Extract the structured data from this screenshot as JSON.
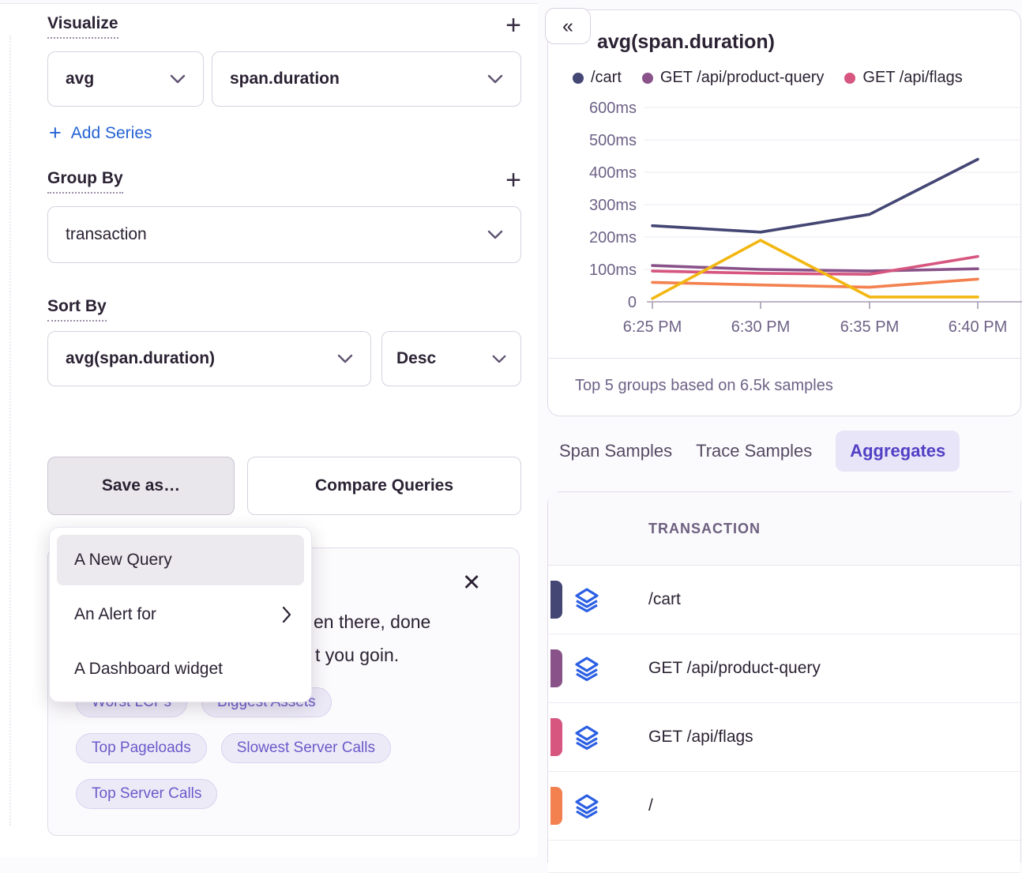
{
  "left_panel": {
    "visualize": {
      "heading": "Visualize",
      "add_icon": "+",
      "aggregate": "avg",
      "field": "span.duration",
      "add_series_plus": "+",
      "add_series_label": "Add Series"
    },
    "group_by": {
      "heading": "Group By",
      "add_icon": "+",
      "value": "transaction"
    },
    "sort_by": {
      "heading": "Sort By",
      "field": "avg(span.duration)",
      "direction": "Desc"
    },
    "buttons": {
      "save_as": "Save as…",
      "compare": "Compare Queries"
    },
    "save_menu": [
      {
        "label": "A New Query",
        "highlighted": true,
        "submenu": false
      },
      {
        "label": "An Alert for",
        "highlighted": false,
        "submenu": true
      },
      {
        "label": "A Dashboard widget",
        "highlighted": false,
        "submenu": false
      }
    ],
    "promo": {
      "close_icon": "✕",
      "text_line_1": "en there, done",
      "text_line_2": "t you goin.",
      "chips_row_1": [
        "Worst LCPs",
        "Biggest Assets"
      ],
      "chips_row_2": [
        "Top Pageloads",
        "Slowest Server Calls"
      ],
      "chips_row_3": [
        "Top Server Calls"
      ]
    }
  },
  "right_panel": {
    "collapse_icon": "«",
    "chart_title": "avg(span.duration)",
    "legend": [
      {
        "label": "/cart",
        "color": "#444674"
      },
      {
        "label": "GET /api/product-query",
        "color": "#895289"
      },
      {
        "label": "GET /api/flags",
        "color": "#d6567f"
      }
    ],
    "footer": "Top 5 groups based on 6.5k samples",
    "tabs": [
      {
        "label": "Span Samples",
        "active": false
      },
      {
        "label": "Trace Samples",
        "active": false
      },
      {
        "label": "Aggregates",
        "active": true
      }
    ],
    "table": {
      "header": "TRANSACTION",
      "rows": [
        {
          "transaction": "/cart",
          "color": "#444674"
        },
        {
          "transaction": "GET /api/product-query",
          "color": "#895289"
        },
        {
          "transaction": "GET /api/flags",
          "color": "#d6567f"
        },
        {
          "transaction": "/",
          "color": "#f38150"
        }
      ]
    }
  },
  "chart_data": {
    "type": "line",
    "title": "avg(span.duration)",
    "x_labels": [
      "6:25 PM",
      "6:30 PM",
      "6:35 PM",
      "6:40 PM"
    ],
    "y_tick_labels": [
      "0",
      "100ms",
      "200ms",
      "300ms",
      "400ms",
      "500ms",
      "600ms"
    ],
    "ylim": [
      0,
      600
    ],
    "unit": "ms",
    "grid": "horizontal",
    "legend_position": "top",
    "series": [
      {
        "name": "/cart",
        "color": "#444674",
        "values_ms": [
          235,
          215,
          270,
          440
        ]
      },
      {
        "name": "GET /api/product-query",
        "color": "#895289",
        "values_ms": [
          112,
          100,
          95,
          102
        ]
      },
      {
        "name": "GET /api/flags",
        "color": "#d6567f",
        "values_ms": [
          95,
          88,
          85,
          140
        ]
      },
      {
        "name": "/",
        "color": "#f38150",
        "values_ms": [
          60,
          52,
          45,
          70
        ]
      },
      {
        "name": "",
        "color": "#f2b712",
        "values_ms": [
          10,
          190,
          15,
          15
        ]
      }
    ],
    "footnote": "Top 5 groups based on 6.5k samples"
  }
}
